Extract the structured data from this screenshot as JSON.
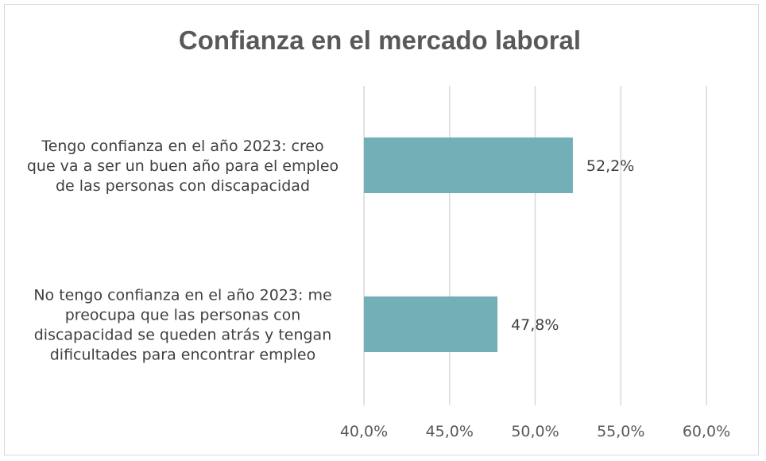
{
  "chart_data": {
    "type": "bar",
    "orientation": "horizontal",
    "title": "Confianza en el mercado laboral",
    "categories": [
      [
        "Tengo confianza en el año 2023: creo",
        "que va a ser un buen año para el empleo",
        "de las personas con discapacidad"
      ],
      [
        "No tengo confianza en el año 2023: me",
        "preocupa que las personas con",
        "discapacidad se queden atrás y tengan",
        "dificultades para encontrar empleo"
      ]
    ],
    "values": [
      52.2,
      47.8
    ],
    "value_labels": [
      "52,2%",
      "47,8%"
    ],
    "xlim": [
      40,
      60
    ],
    "ticks": [
      40,
      45,
      50,
      55,
      60
    ],
    "tick_labels": [
      "40,0%",
      "45,0%",
      "50,0%",
      "55,0%",
      "60,0%"
    ],
    "grid": true,
    "legend": "none",
    "bar_color": "#73afb6",
    "grid_color": "#d9d9d9"
  }
}
